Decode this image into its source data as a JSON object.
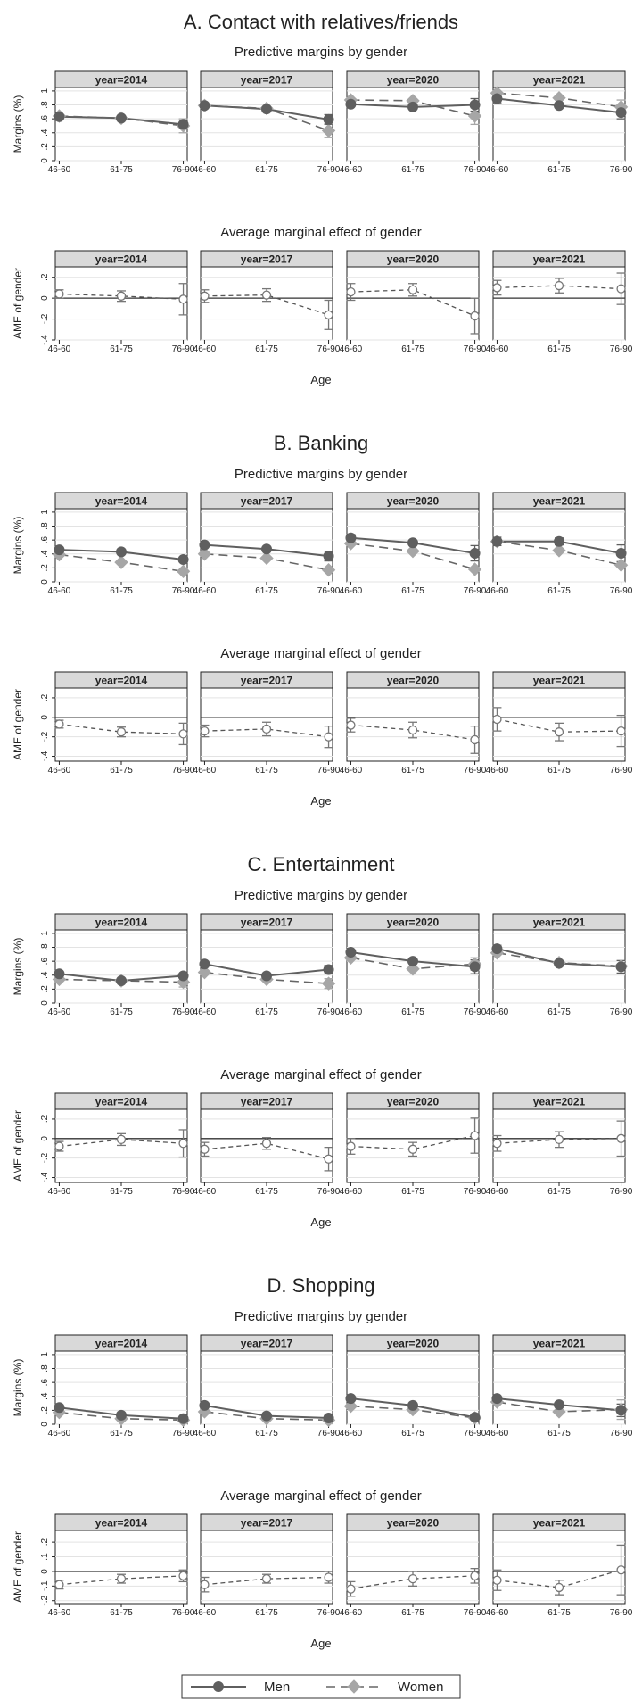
{
  "legend": {
    "men": "Men",
    "women": "Women"
  },
  "colors": {
    "men": "#5f5f5f",
    "women": "#a6a6a6",
    "strip": "#d9d9d9",
    "grid": "#e3e3e3",
    "axis": "#000000"
  },
  "common": {
    "panel_label_prefix": "year=",
    "years": [
      "2014",
      "2017",
      "2020",
      "2021"
    ],
    "age_groups": [
      "46-60",
      "61-75",
      "76-90"
    ],
    "margins_title": "Predictive margins by gender",
    "ame_title": "Average marginal effect of gender",
    "margins_ylabel": "Margins (%)",
    "ame_ylabel": "AME of gender",
    "xlabel": "Age"
  },
  "chart_data": [
    {
      "section_title": "A. Contact with relatives/friends",
      "margins": {
        "type": "line",
        "ylim": [
          0,
          1.05
        ],
        "yticks": [
          0,
          0.2,
          0.4,
          0.6,
          0.8,
          1
        ],
        "ytick_labels": [
          "0",
          ".2",
          ".4",
          ".6",
          ".8",
          "1"
        ],
        "panels": [
          {
            "men": [
              0.63,
              0.61,
              0.52
            ],
            "women": [
              0.64,
              0.61,
              0.5
            ],
            "women_ci": [
              null,
              null,
              0.1
            ]
          },
          {
            "men": [
              0.79,
              0.74,
              0.59
            ],
            "women": [
              0.79,
              0.75,
              0.43
            ],
            "men_ci": [
              null,
              null,
              0.07
            ],
            "women_ci": [
              null,
              null,
              0.1
            ]
          },
          {
            "men": [
              0.81,
              0.77,
              0.8
            ],
            "women": [
              0.87,
              0.86,
              0.64
            ],
            "men_ci": [
              null,
              null,
              0.09
            ],
            "women_ci": [
              null,
              null,
              0.12
            ]
          },
          {
            "men": [
              0.89,
              0.79,
              0.69
            ],
            "women": [
              0.97,
              0.9,
              0.77
            ],
            "men_ci": [
              0.06,
              null,
              0.09
            ],
            "women_ci": [
              null,
              null,
              0.1
            ]
          }
        ]
      },
      "ame": {
        "type": "scatter",
        "ylim": [
          -0.4,
          0.3
        ],
        "yticks": [
          -0.4,
          -0.2,
          0,
          0.2
        ],
        "ytick_labels": [
          "-.4",
          "-.2",
          "0",
          ".2"
        ],
        "panels": [
          {
            "values": [
              0.04,
              0.02,
              -0.01
            ],
            "ci": [
              0.04,
              0.05,
              0.15
            ]
          },
          {
            "values": [
              0.02,
              0.03,
              -0.16
            ],
            "ci": [
              0.06,
              0.06,
              0.14
            ]
          },
          {
            "values": [
              0.06,
              0.08,
              -0.17
            ],
            "ci": [
              0.08,
              0.06,
              0.17
            ]
          },
          {
            "values": [
              0.1,
              0.12,
              0.09
            ],
            "ci": [
              0.07,
              0.07,
              0.15
            ]
          }
        ]
      }
    },
    {
      "section_title": "B. Banking",
      "margins": {
        "type": "line",
        "ylim": [
          0,
          1.05
        ],
        "yticks": [
          0,
          0.2,
          0.4,
          0.6,
          0.8,
          1
        ],
        "ytick_labels": [
          "0",
          ".2",
          ".4",
          ".6",
          ".8",
          "1"
        ],
        "panels": [
          {
            "men": [
              0.46,
              0.43,
              0.32
            ],
            "women": [
              0.39,
              0.28,
              0.15
            ]
          },
          {
            "men": [
              0.53,
              0.47,
              0.37
            ],
            "women": [
              0.4,
              0.34,
              0.17
            ],
            "men_ci": [
              null,
              null,
              0.07
            ]
          },
          {
            "men": [
              0.63,
              0.56,
              0.41
            ],
            "women": [
              0.55,
              0.44,
              0.18
            ],
            "men_ci": [
              0.05,
              null,
              0.11
            ]
          },
          {
            "men": [
              0.58,
              0.58,
              0.41
            ],
            "women": [
              0.58,
              0.45,
              0.24
            ],
            "men_ci": [
              0.06,
              0.05,
              0.12
            ]
          }
        ]
      },
      "ame": {
        "type": "scatter",
        "ylim": [
          -0.45,
          0.3
        ],
        "yticks": [
          -0.4,
          -0.2,
          0,
          0.2
        ],
        "ytick_labels": [
          "-.4",
          "-.2",
          "0",
          ".2"
        ],
        "panels": [
          {
            "values": [
              -0.07,
              -0.15,
              -0.17
            ],
            "ci": [
              0.04,
              0.05,
              0.11
            ]
          },
          {
            "values": [
              -0.14,
              -0.12,
              -0.2
            ],
            "ci": [
              0.06,
              0.07,
              0.11
            ]
          },
          {
            "values": [
              -0.08,
              -0.13,
              -0.23
            ],
            "ci": [
              0.07,
              0.08,
              0.14
            ]
          },
          {
            "values": [
              -0.02,
              -0.15,
              -0.14
            ],
            "ci": [
              0.12,
              0.09,
              0.16
            ]
          }
        ]
      }
    },
    {
      "section_title": "C. Entertainment",
      "margins": {
        "type": "line",
        "ylim": [
          0,
          1.05
        ],
        "yticks": [
          0,
          0.2,
          0.4,
          0.6,
          0.8,
          1
        ],
        "ytick_labels": [
          "0",
          ".2",
          ".4",
          ".6",
          ".8",
          "1"
        ],
        "panels": [
          {
            "men": [
              0.42,
              0.32,
              0.39
            ],
            "women": [
              0.34,
              0.32,
              0.3
            ],
            "women_ci": [
              null,
              null,
              0.07
            ]
          },
          {
            "men": [
              0.56,
              0.39,
              0.48
            ],
            "women": [
              0.44,
              0.34,
              0.28
            ],
            "men_ci": [
              null,
              null,
              0.06
            ],
            "women_ci": [
              null,
              null,
              0.07
            ]
          },
          {
            "men": [
              0.73,
              0.6,
              0.52
            ],
            "women": [
              0.65,
              0.49,
              0.56
            ],
            "men_ci": [
              null,
              null,
              0.1
            ],
            "women_ci": [
              null,
              null,
              0.09
            ]
          },
          {
            "men": [
              0.78,
              0.57,
              0.52
            ],
            "women": [
              0.72,
              0.58,
              0.53
            ],
            "men_ci": [
              0.05,
              null,
              0.09
            ]
          }
        ]
      },
      "ame": {
        "type": "scatter",
        "ylim": [
          -0.45,
          0.3
        ],
        "yticks": [
          -0.4,
          -0.2,
          0,
          0.2
        ],
        "ytick_labels": [
          "-.4",
          "-.2",
          "0",
          ".2"
        ],
        "panels": [
          {
            "values": [
              -0.08,
              -0.01,
              -0.05
            ],
            "ci": [
              0.05,
              0.06,
              0.14
            ]
          },
          {
            "values": [
              -0.11,
              -0.05,
              -0.21
            ],
            "ci": [
              0.07,
              0.06,
              0.12
            ]
          },
          {
            "values": [
              -0.08,
              -0.11,
              0.03
            ],
            "ci": [
              0.08,
              0.07,
              0.18
            ]
          },
          {
            "values": [
              -0.05,
              -0.01,
              0.0
            ],
            "ci": [
              0.08,
              0.08,
              0.18
            ]
          }
        ]
      }
    },
    {
      "section_title": "D. Shopping",
      "margins": {
        "type": "line",
        "ylim": [
          0,
          1.05
        ],
        "yticks": [
          0,
          0.2,
          0.4,
          0.6,
          0.8,
          1
        ],
        "ytick_labels": [
          "0",
          ".2",
          ".4",
          ".6",
          ".8",
          "1"
        ],
        "panels": [
          {
            "men": [
              0.24,
              0.13,
              0.08
            ],
            "women": [
              0.17,
              0.08,
              0.06
            ]
          },
          {
            "men": [
              0.27,
              0.12,
              0.09
            ],
            "women": [
              0.18,
              0.08,
              0.06
            ]
          },
          {
            "men": [
              0.37,
              0.27,
              0.1
            ],
            "women": [
              0.26,
              0.21,
              0.09
            ]
          },
          {
            "men": [
              0.37,
              0.28,
              0.2
            ],
            "women": [
              0.32,
              0.18,
              0.21
            ],
            "men_ci": [
              null,
              null,
              0.09
            ],
            "women_ci": [
              null,
              null,
              0.14
            ]
          }
        ]
      },
      "ame": {
        "type": "scatter",
        "ylim": [
          -0.22,
          0.28
        ],
        "yticks": [
          -0.2,
          -0.1,
          0,
          0.1,
          0.2
        ],
        "ytick_labels": [
          "-.2",
          "-.1",
          "0",
          ".1",
          ".2"
        ],
        "panels": [
          {
            "values": [
              -0.09,
              -0.05,
              -0.03
            ],
            "ci": [
              0.03,
              0.03,
              0.04
            ]
          },
          {
            "values": [
              -0.09,
              -0.05,
              -0.04
            ],
            "ci": [
              0.05,
              0.03,
              0.04
            ]
          },
          {
            "values": [
              -0.12,
              -0.05,
              -0.03
            ],
            "ci": [
              0.05,
              0.05,
              0.05
            ]
          },
          {
            "values": [
              -0.06,
              -0.11,
              0.01
            ],
            "ci": [
              0.07,
              0.05,
              0.17
            ]
          }
        ]
      }
    }
  ]
}
